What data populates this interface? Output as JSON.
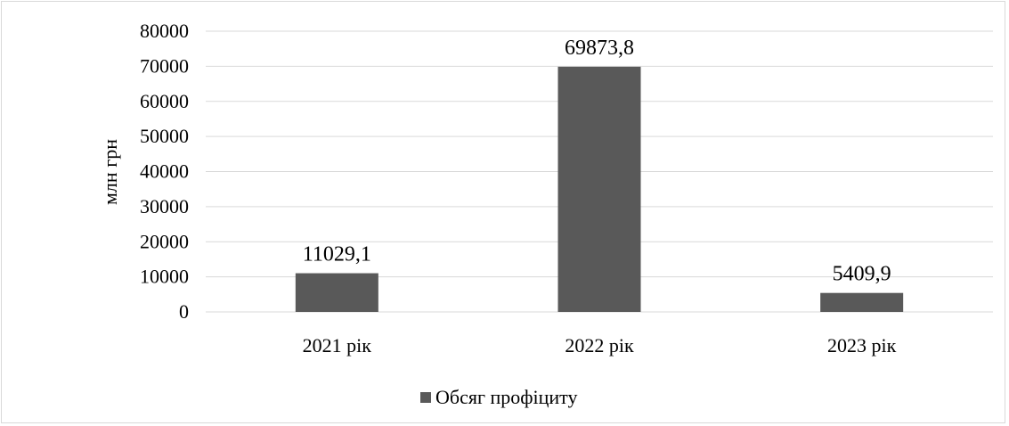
{
  "chart_data": {
    "type": "bar",
    "categories": [
      "2021 рік",
      "2022 рік",
      "2023 рік"
    ],
    "series": [
      {
        "name": "Обсяг профіциту",
        "values": [
          11029.1,
          69873.8,
          5409.9
        ],
        "value_labels": [
          "11029,1",
          "69873,8",
          "5409,9"
        ],
        "color": "#595959"
      }
    ],
    "title": "",
    "xlabel": "",
    "ylabel": "млн грн",
    "ylim": [
      0,
      80000
    ],
    "yticks": [
      0,
      10000,
      20000,
      30000,
      40000,
      50000,
      60000,
      70000,
      80000
    ],
    "grid": true,
    "gridline_color": "#d9d9d9",
    "legend": {
      "position": "bottom",
      "entries": [
        "Обсяг профіциту"
      ]
    }
  }
}
